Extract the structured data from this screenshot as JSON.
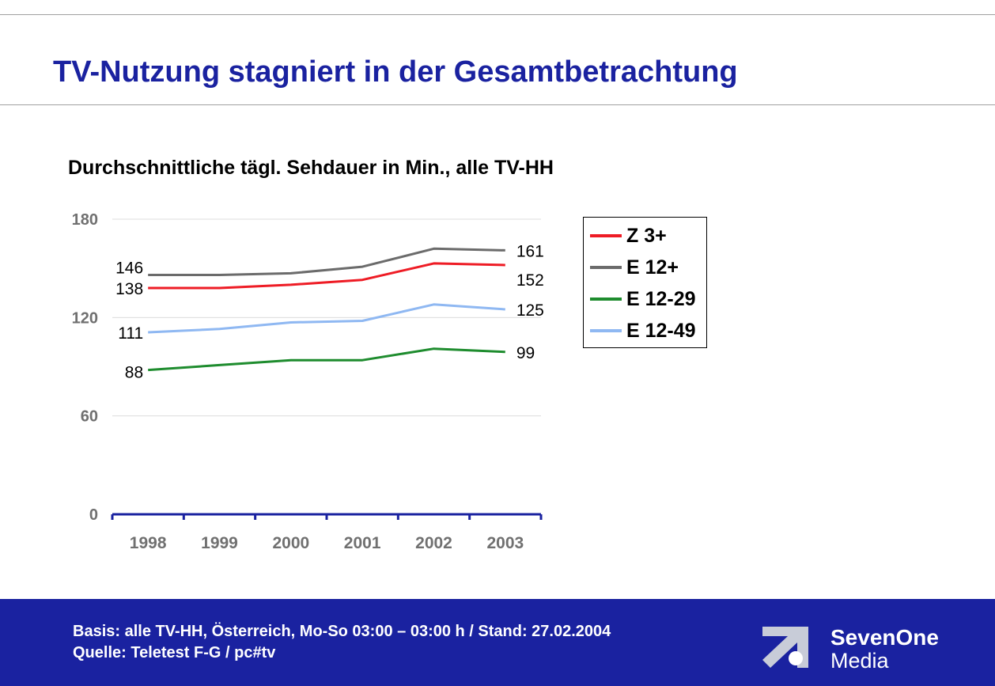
{
  "slide": {
    "title": "TV-Nutzung stagniert in der Gesamtbetrachtung"
  },
  "chart_data": {
    "type": "line",
    "title": "Durchschnittliche tägl. Sehdauer in Min., alle TV-HH",
    "x": [
      "1998",
      "1999",
      "2000",
      "2001",
      "2002",
      "2003"
    ],
    "ylim": [
      0,
      180
    ],
    "yticks": [
      "0",
      "60",
      "120",
      "180"
    ],
    "grid": true,
    "legend_position": "right",
    "series": [
      {
        "name": "Z 3+",
        "color": "#ee1c25",
        "values": [
          138,
          138,
          140,
          143,
          153,
          152
        ]
      },
      {
        "name": "E 12+",
        "color": "#6b6b6b",
        "values": [
          146,
          146,
          147,
          151,
          162,
          161
        ]
      },
      {
        "name": "E 12-29",
        "color": "#1e8c2e",
        "values": [
          88,
          91,
          94,
          94,
          101,
          99
        ]
      },
      {
        "name": "E 12-49",
        "color": "#8fb8f2",
        "values": [
          111,
          113,
          117,
          118,
          128,
          125
        ]
      }
    ],
    "data_labels": [
      {
        "series": 1,
        "index": 0,
        "text": "146"
      },
      {
        "series": 0,
        "index": 0,
        "text": "138"
      },
      {
        "series": 3,
        "index": 0,
        "text": "111"
      },
      {
        "series": 2,
        "index": 0,
        "text": "88"
      },
      {
        "series": 1,
        "index": 5,
        "text": "161"
      },
      {
        "series": 0,
        "index": 5,
        "text": "152"
      },
      {
        "series": 3,
        "index": 5,
        "text": "125"
      },
      {
        "series": 2,
        "index": 5,
        "text": "99"
      }
    ]
  },
  "footer": {
    "basis": "Basis: alle TV-HH, Österreich, Mo-So 03:00 – 03:00 h / Stand: 27.02.2004",
    "source": "Quelle:  Teletest F-G / pc#tv",
    "logo_line1": "SevenOne",
    "logo_line2": "Media"
  },
  "colors": {
    "title": "#1a22a0",
    "footer_bg": "#1a22a0",
    "axis": "#1a22a0"
  }
}
